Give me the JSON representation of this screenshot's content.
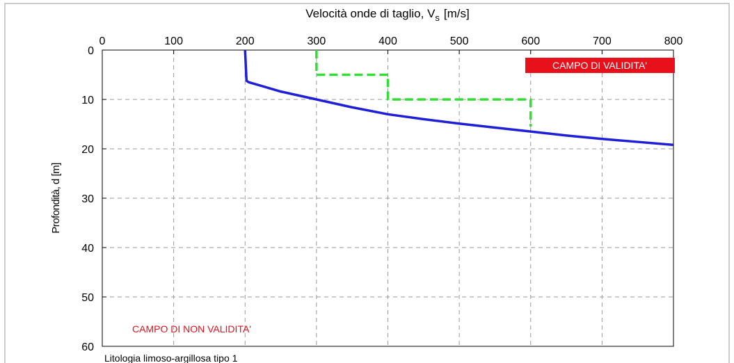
{
  "chart_data": {
    "type": "line",
    "x_label": "Velocità onde di taglio, V",
    "x_label_subscript": "s",
    "x_label_unit": "[m/s]",
    "y_label": "Profondità, d [m]",
    "xlim": [
      0,
      800
    ],
    "xticks": [
      0,
      100,
      200,
      300,
      400,
      500,
      600,
      700,
      800
    ],
    "ylim": [
      0,
      60
    ],
    "yticks": [
      0,
      10,
      20,
      30,
      40,
      50,
      60
    ],
    "y_inverted": true,
    "grid": true,
    "series": [
      {
        "color": "#1f1fd6",
        "dash": false,
        "x": [
          200,
          202,
          205,
          250,
          300,
          350,
          400,
          450,
          500,
          550,
          600,
          650,
          700,
          750,
          800
        ],
        "values": [
          0,
          6.2,
          6.5,
          8.4,
          10,
          11.6,
          13,
          14,
          14.9,
          15.7,
          16.5,
          17.3,
          18,
          18.6,
          19.2
        ]
      },
      {
        "color": "#33dd33",
        "dash": true,
        "x": [
          300,
          300,
          400,
          400,
          600,
          600
        ],
        "values": [
          0,
          5,
          5,
          10,
          10,
          15.5
        ]
      }
    ],
    "annotations": [
      {
        "text": "CAMPO DI VALIDITA'"
      },
      {
        "text": "CAMPO DI NON VALIDITA'"
      },
      {
        "text": "Litologia limoso-argillosa tipo 1"
      }
    ]
  }
}
